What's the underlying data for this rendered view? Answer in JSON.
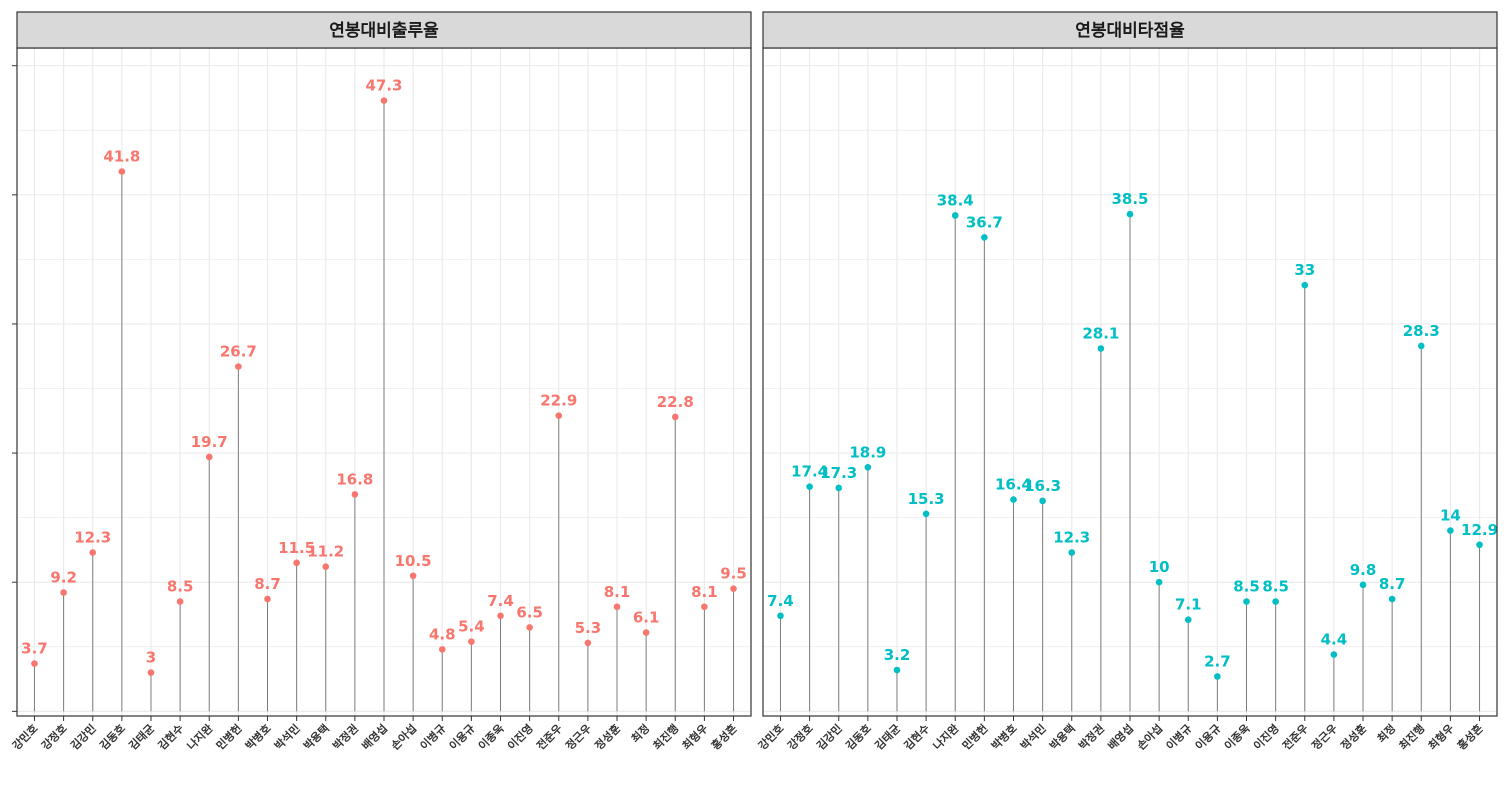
{
  "chart_data": [
    {
      "type": "lollipop",
      "title": "연봉대비출루율",
      "color": "#F8766D",
      "categories": [
        "강민호",
        "강정호",
        "김강민",
        "김동호",
        "김태균",
        "김현수",
        "나지완",
        "민병헌",
        "박병호",
        "박석민",
        "박용택",
        "박정권",
        "배영섭",
        "손아섭",
        "이병규",
        "이용규",
        "이종욱",
        "이진영",
        "전준우",
        "정근우",
        "정성훈",
        "최정",
        "최진행",
        "최형우",
        "홍성흔"
      ],
      "values": [
        3.7,
        9.2,
        12.3,
        41.8,
        3,
        8.5,
        19.7,
        26.7,
        8.7,
        11.5,
        11.2,
        16.8,
        47.3,
        10.5,
        4.8,
        5.4,
        7.4,
        6.5,
        22.9,
        5.3,
        8.1,
        6.1,
        22.8,
        8.1,
        9.5
      ],
      "labels": [
        "3.7",
        "9.2",
        "12.3",
        "41.8",
        "3",
        "8.5",
        "19.7",
        "26.7",
        "8.7",
        "11.5",
        "11.2",
        "16.8",
        "47.3",
        "10.5",
        "4.8",
        "5.4",
        "7.4",
        "6.5",
        "22.9",
        "5.3",
        "8.1",
        "6.1",
        "22.8",
        "8.1",
        "9.5"
      ],
      "ylim": [
        -0.36,
        51.37
      ],
      "grid": true
    },
    {
      "type": "lollipop",
      "title": "연봉대비타점율",
      "color": "#00BFC4",
      "categories": [
        "강민호",
        "강정호",
        "김강민",
        "김동호",
        "김태균",
        "김현수",
        "나지완",
        "민병헌",
        "박병호",
        "박석민",
        "박용택",
        "박정권",
        "배영섭",
        "손아섭",
        "이병규",
        "이용규",
        "이종욱",
        "이진영",
        "전준우",
        "정근우",
        "정성훈",
        "최정",
        "최진행",
        "최형우",
        "홍성흔"
      ],
      "values": [
        7.4,
        17.4,
        17.3,
        18.9,
        3.2,
        15.3,
        38.4,
        36.7,
        16.4,
        16.3,
        12.3,
        28.1,
        38.5,
        10,
        7.1,
        2.7,
        8.5,
        8.5,
        33,
        4.4,
        9.8,
        8.7,
        28.3,
        14,
        12.9
      ],
      "labels": [
        "7.4",
        "17.4",
        "17.3",
        "18.9",
        "3.2",
        "15.3",
        "38.4",
        "36.7",
        "16.4",
        "16.3",
        "12.3",
        "28.1",
        "38.5",
        "10",
        "7.1",
        "2.7",
        "8.5",
        "8.5",
        "33",
        "4.4",
        "9.8",
        "8.7",
        "28.3",
        "14",
        "12.9"
      ],
      "ylim": [
        -0.36,
        51.37
      ],
      "grid": true
    }
  ],
  "style": {
    "background": "#FFFFFF",
    "strip_background": "#D9D9D9",
    "grid_color": "#EBEBEB",
    "stem_color": "#7F7F7F",
    "border_color": "#333333"
  }
}
